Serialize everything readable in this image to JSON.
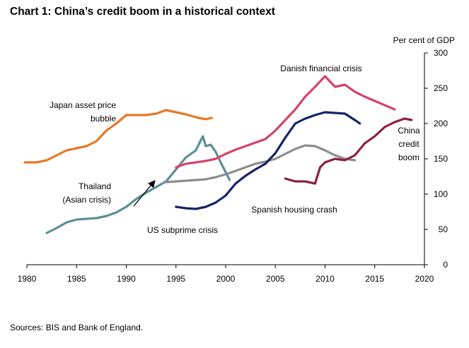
{
  "title": "Chart 1: China’s credit boom in a historical context",
  "source": "Sources: BIS and Bank of England.",
  "chart_data": {
    "type": "line",
    "title": "Chart 1: China’s credit boom in a historical context",
    "ylabel": "Per cent of GDP",
    "y_axis_side": "right",
    "xlim": [
      1980,
      2020
    ],
    "ylim": [
      0,
      300
    ],
    "x_ticks": [
      1980,
      1985,
      1990,
      1995,
      2000,
      2005,
      2010,
      2015,
      2020
    ],
    "y_ticks": [
      0,
      50,
      100,
      150,
      200,
      250,
      300
    ],
    "grid": false,
    "series": [
      {
        "name": "Japan asset price bubble",
        "label_lines": [
          "Japan asset price",
          "bubble"
        ],
        "color": "#E87722",
        "x": [
          1979.8,
          1981,
          1982,
          1983,
          1984,
          1985,
          1986,
          1987,
          1988,
          1989,
          1990,
          1991,
          1992,
          1993,
          1994,
          1995,
          1996,
          1997,
          1998,
          1998.6
        ],
        "y": [
          145,
          145,
          148,
          155,
          162,
          165,
          168,
          175,
          190,
          200,
          212,
          212,
          212,
          214,
          219,
          216,
          213,
          209,
          206,
          208
        ]
      },
      {
        "name": "Thailand (Asian crisis)",
        "label_lines": [
          "Thailand",
          "(Asian crisis)"
        ],
        "color": "#5A8F96",
        "x": [
          1982,
          1983,
          1984,
          1985,
          1986,
          1987,
          1988,
          1989,
          1990,
          1991,
          1992,
          1993,
          1994,
          1995,
          1996,
          1997,
          1997.7,
          1998,
          1998.5,
          1999,
          1999.5,
          2000.4
        ],
        "y": [
          45,
          52,
          60,
          64,
          65,
          66,
          69,
          74,
          82,
          93,
          102,
          110,
          118,
          135,
          152,
          162,
          182,
          168,
          170,
          160,
          145,
          120
        ]
      },
      {
        "name": "US subprime crisis",
        "color": "#8C8C8C",
        "x": [
          1994,
          1995,
          1996,
          1997,
          1998,
          1999,
          2000,
          2001,
          2002,
          2003,
          2004,
          2005,
          2006,
          2007,
          2008,
          2009,
          2010,
          2011,
          2012,
          2013
        ],
        "y": [
          117,
          118,
          119,
          120,
          121,
          124,
          128,
          133,
          138,
          143,
          146,
          150,
          157,
          164,
          169,
          168,
          162,
          155,
          150,
          148
        ]
      },
      {
        "name": "Danish financial crisis",
        "color": "#D6426A",
        "x": [
          1995,
          1996,
          1997,
          1998,
          1999,
          2000,
          2001,
          2002,
          2003,
          2004,
          2005,
          2006,
          2007,
          2008,
          2009,
          2010,
          2011,
          2012,
          2013,
          2014,
          2015,
          2016,
          2017
        ],
        "y": [
          138,
          143,
          145,
          147,
          150,
          157,
          163,
          168,
          173,
          178,
          190,
          205,
          220,
          238,
          252,
          267,
          252,
          255,
          245,
          238,
          232,
          226,
          220
        ]
      },
      {
        "name": "Spanish housing crash",
        "color": "#14226A",
        "x": [
          1995,
          1996,
          1997,
          1998,
          1999,
          2000,
          2001,
          2002,
          2003,
          2004,
          2005,
          2006,
          2007,
          2008,
          2009,
          2010,
          2011,
          2012,
          2013,
          2013.5
        ],
        "y": [
          82,
          80,
          79,
          82,
          88,
          98,
          115,
          126,
          135,
          143,
          158,
          180,
          200,
          207,
          212,
          216,
          215,
          214,
          205,
          200
        ]
      },
      {
        "name": "China credit boom",
        "label_lines": [
          "China",
          "credit",
          "boom"
        ],
        "color": "#8E1F3D",
        "x": [
          2006,
          2007,
          2008,
          2009,
          2009.5,
          2010,
          2011,
          2012,
          2013,
          2014,
          2015,
          2016,
          2017,
          2018,
          2018.7
        ],
        "y": [
          122,
          118,
          118,
          115,
          138,
          145,
          150,
          148,
          155,
          172,
          182,
          195,
          202,
          207,
          205
        ]
      }
    ]
  }
}
